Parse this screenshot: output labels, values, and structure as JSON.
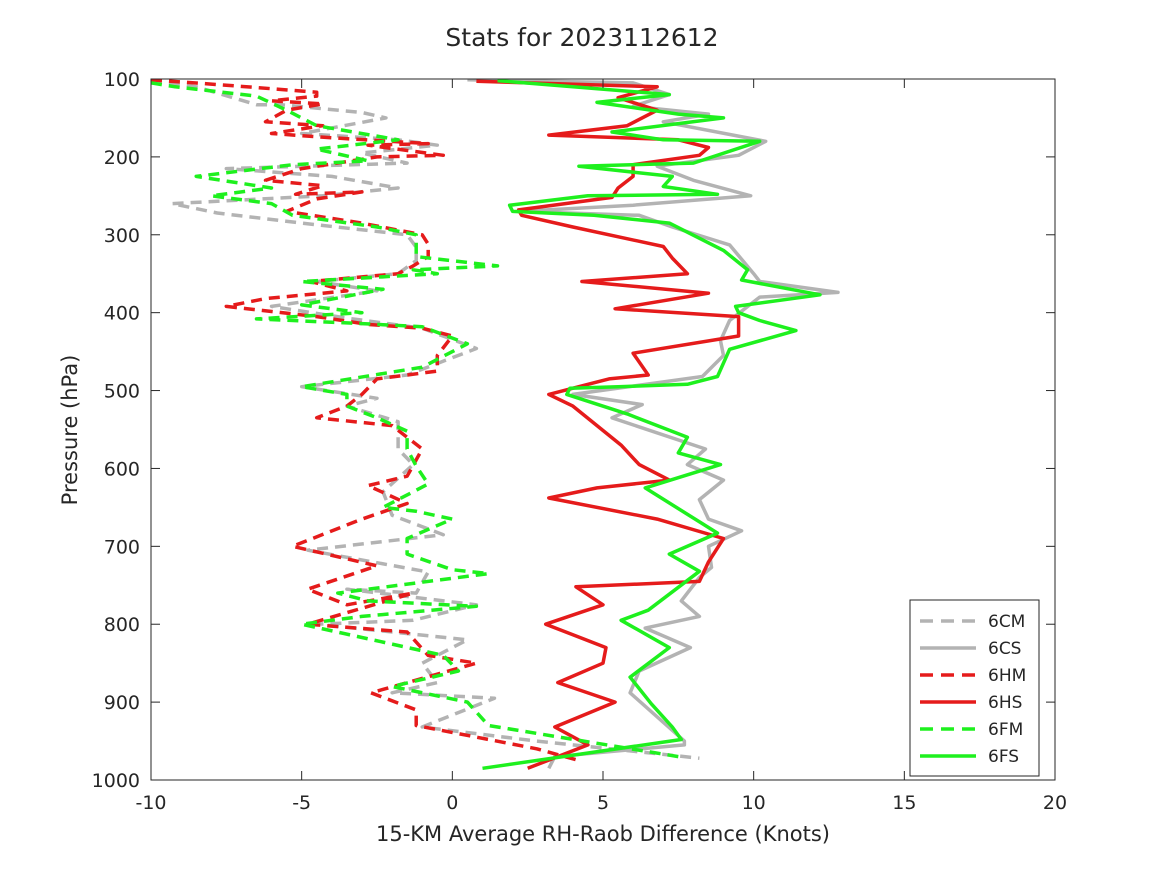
{
  "chart_data": {
    "type": "line",
    "title": "Stats for 2023112612",
    "xlabel": "15-KM Average RH-Raob Difference (Knots)",
    "ylabel": "Pressure (hPa)",
    "xlim": [
      -10,
      20
    ],
    "ylim": [
      1000,
      100
    ],
    "y_reversed": true,
    "xticks": [
      -10,
      -5,
      0,
      5,
      10,
      15,
      20
    ],
    "xtick_labels": [
      "-10",
      "-5",
      "0",
      "5",
      "10",
      "15",
      "20"
    ],
    "yticks": [
      100,
      200,
      300,
      400,
      500,
      600,
      700,
      800,
      900,
      1000
    ],
    "ytick_labels": [
      "100",
      "200",
      "300",
      "400",
      "500",
      "600",
      "700",
      "800",
      "900",
      "1000"
    ],
    "grid": false,
    "legend_position": "bottom-right",
    "series": [
      {
        "name": "6CM",
        "color": "#b3b3b3",
        "style": "dashed",
        "points": [
          [
            -10,
            103
          ],
          [
            -8.5,
            110
          ],
          [
            -6.5,
            133
          ],
          [
            -5.7,
            133
          ],
          [
            -3,
            143
          ],
          [
            -2.2,
            150
          ],
          [
            -5,
            170
          ],
          [
            -1.8,
            178
          ],
          [
            -0.5,
            185
          ],
          [
            -3,
            195
          ],
          [
            -1.5,
            208
          ],
          [
            -7.5,
            215
          ],
          [
            -4,
            225
          ],
          [
            -1.8,
            240
          ],
          [
            -4.3,
            250
          ],
          [
            -9.3,
            260
          ],
          [
            -7.8,
            272
          ],
          [
            -5,
            285
          ],
          [
            -1.5,
            300
          ],
          [
            -1.2,
            316
          ],
          [
            -1.2,
            333
          ],
          [
            -1.8,
            350
          ],
          [
            -4.5,
            360
          ],
          [
            -2.5,
            372
          ],
          [
            -6,
            392
          ],
          [
            -3.5,
            407
          ],
          [
            -1,
            420
          ],
          [
            0.8,
            446
          ],
          [
            -1.5,
            480
          ],
          [
            -5,
            495
          ],
          [
            -2.5,
            510
          ],
          [
            -3.5,
            520
          ],
          [
            -1.8,
            540
          ],
          [
            -1.8,
            575
          ],
          [
            -1.3,
            595
          ],
          [
            -2.3,
            630
          ],
          [
            -2,
            660
          ],
          [
            -0.3,
            685
          ],
          [
            -4.8,
            705
          ],
          [
            -0.8,
            733
          ],
          [
            -1.2,
            760
          ],
          [
            -3.5,
            755
          ],
          [
            0.8,
            775
          ],
          [
            -1.3,
            795
          ],
          [
            -4.5,
            800
          ],
          [
            0.5,
            820
          ],
          [
            -1,
            850
          ],
          [
            -0.5,
            875
          ],
          [
            -2,
            888
          ],
          [
            1.4,
            895
          ],
          [
            -1,
            932
          ],
          [
            2.8,
            950
          ],
          [
            8.2,
            972
          ]
        ]
      },
      {
        "name": "6CS",
        "color": "#b3b3b3",
        "style": "solid",
        "points": [
          [
            0.5,
            101
          ],
          [
            6,
            105
          ],
          [
            7.2,
            120
          ],
          [
            6,
            135
          ],
          [
            8.5,
            145
          ],
          [
            7,
            155
          ],
          [
            10.4,
            180
          ],
          [
            9.5,
            198
          ],
          [
            6.8,
            212
          ],
          [
            8,
            230
          ],
          [
            9.9,
            250
          ],
          [
            6,
            262
          ],
          [
            2.2,
            270
          ],
          [
            6.2,
            275
          ],
          [
            7.3,
            290
          ],
          [
            9.2,
            313
          ],
          [
            10,
            350
          ],
          [
            10.2,
            360
          ],
          [
            12.8,
            374
          ],
          [
            10.2,
            380
          ],
          [
            9.2,
            410
          ],
          [
            8.9,
            436
          ],
          [
            9,
            455
          ],
          [
            8.3,
            482
          ],
          [
            4,
            505
          ],
          [
            6.3,
            518
          ],
          [
            5.3,
            535
          ],
          [
            8.4,
            575
          ],
          [
            7.8,
            595
          ],
          [
            9,
            615
          ],
          [
            8.2,
            640
          ],
          [
            8.5,
            665
          ],
          [
            9.6,
            680
          ],
          [
            8.5,
            700
          ],
          [
            8.6,
            727
          ],
          [
            8.2,
            740
          ],
          [
            7.6,
            770
          ],
          [
            8.2,
            790
          ],
          [
            6.4,
            805
          ],
          [
            7.9,
            830
          ],
          [
            6.2,
            860
          ],
          [
            5.9,
            888
          ],
          [
            7.7,
            950
          ],
          [
            7.7,
            955
          ],
          [
            3.4,
            970
          ],
          [
            3.2,
            985
          ]
        ]
      },
      {
        "name": "6HM",
        "color": "#e51b1b",
        "style": "dashed",
        "points": [
          [
            -10,
            101
          ],
          [
            -7.5,
            108
          ],
          [
            -4.5,
            117
          ],
          [
            -4.5,
            122
          ],
          [
            -6,
            128
          ],
          [
            -4.3,
            132
          ],
          [
            -5.5,
            140
          ],
          [
            -6.2,
            155
          ],
          [
            -4.3,
            160
          ],
          [
            -6,
            170
          ],
          [
            -4.2,
            175
          ],
          [
            -0.8,
            183
          ],
          [
            -2.8,
            185
          ],
          [
            -0.3,
            198
          ],
          [
            -2.5,
            200
          ],
          [
            -5,
            215
          ],
          [
            -6.2,
            230
          ],
          [
            -4.3,
            237
          ],
          [
            -5.2,
            248
          ],
          [
            -3,
            245
          ],
          [
            -4.5,
            254
          ],
          [
            -5.5,
            270
          ],
          [
            -3,
            285
          ],
          [
            -1,
            300
          ],
          [
            -0.8,
            312
          ],
          [
            -0.8,
            328
          ],
          [
            -1.3,
            340
          ],
          [
            -1.8,
            350
          ],
          [
            -4.7,
            360
          ],
          [
            -3.5,
            372
          ],
          [
            -6.2,
            382
          ],
          [
            -7.5,
            392
          ],
          [
            -4.5,
            405
          ],
          [
            -2.8,
            415
          ],
          [
            -1,
            420
          ],
          [
            0,
            430
          ],
          [
            -0.5,
            455
          ],
          [
            -0.5,
            475
          ],
          [
            -2.5,
            485
          ],
          [
            -3,
            505
          ],
          [
            -3.5,
            520
          ],
          [
            -4.5,
            535
          ],
          [
            -2,
            545
          ],
          [
            -1,
            575
          ],
          [
            -1.5,
            610
          ],
          [
            -2.8,
            622
          ],
          [
            -1.5,
            645
          ],
          [
            -3,
            665
          ],
          [
            -5.3,
            700
          ],
          [
            -2.5,
            725
          ],
          [
            -4.8,
            755
          ],
          [
            -3.5,
            775
          ],
          [
            -1.3,
            760
          ],
          [
            -4.8,
            800
          ],
          [
            -1.5,
            810
          ],
          [
            -0.8,
            840
          ],
          [
            0.8,
            850
          ],
          [
            -2.7,
            888
          ],
          [
            -1.2,
            910
          ],
          [
            -1.2,
            930
          ],
          [
            2.8,
            960
          ],
          [
            4.2,
            975
          ]
        ]
      },
      {
        "name": "6HS",
        "color": "#e51b1b",
        "style": "solid",
        "points": [
          [
            0.8,
            103
          ],
          [
            6.8,
            110
          ],
          [
            5.5,
            124
          ],
          [
            6.8,
            140
          ],
          [
            5.8,
            160
          ],
          [
            3.2,
            172
          ],
          [
            7.5,
            178
          ],
          [
            8.5,
            188
          ],
          [
            8.2,
            198
          ],
          [
            6,
            210
          ],
          [
            6,
            225
          ],
          [
            5.5,
            240
          ],
          [
            5.3,
            252
          ],
          [
            2.2,
            268
          ],
          [
            2.3,
            275
          ],
          [
            4,
            290
          ],
          [
            7,
            315
          ],
          [
            7.3,
            330
          ],
          [
            7.8,
            350
          ],
          [
            4.3,
            360
          ],
          [
            8.5,
            375
          ],
          [
            5.4,
            395
          ],
          [
            9.5,
            405
          ],
          [
            9.5,
            430
          ],
          [
            6,
            452
          ],
          [
            6.5,
            480
          ],
          [
            5.2,
            485
          ],
          [
            3.2,
            505
          ],
          [
            4,
            520
          ],
          [
            5.6,
            570
          ],
          [
            6.2,
            595
          ],
          [
            7.2,
            615
          ],
          [
            4.8,
            625
          ],
          [
            3.2,
            638
          ],
          [
            6.8,
            665
          ],
          [
            9,
            690
          ],
          [
            8.5,
            720
          ],
          [
            8.2,
            745
          ],
          [
            4.1,
            752
          ],
          [
            5,
            775
          ],
          [
            3.1,
            800
          ],
          [
            5.1,
            830
          ],
          [
            5,
            850
          ],
          [
            3.5,
            875
          ],
          [
            5.4,
            900
          ],
          [
            3.4,
            932
          ],
          [
            4.5,
            955
          ],
          [
            2.5,
            985
          ]
        ]
      },
      {
        "name": "6FM",
        "color": "#1ef01e",
        "style": "dashed",
        "points": [
          [
            -10,
            105
          ],
          [
            -9.2,
            110
          ],
          [
            -6.5,
            122
          ],
          [
            -5.5,
            140
          ],
          [
            -4.5,
            160
          ],
          [
            -1.8,
            178
          ],
          [
            -4.5,
            190
          ],
          [
            -2.8,
            205
          ],
          [
            -5.3,
            210
          ],
          [
            -8.5,
            225
          ],
          [
            -6,
            240
          ],
          [
            -8,
            250
          ],
          [
            -6,
            260
          ],
          [
            -5.3,
            275
          ],
          [
            -2.5,
            290
          ],
          [
            -1.2,
            300
          ],
          [
            -1.2,
            328
          ],
          [
            1.5,
            340
          ],
          [
            -1.3,
            345
          ],
          [
            -0.5,
            350
          ],
          [
            -5,
            360
          ],
          [
            -2.3,
            370
          ],
          [
            -5,
            390
          ],
          [
            -3,
            400
          ],
          [
            -6.5,
            408
          ],
          [
            -3,
            414
          ],
          [
            -1,
            418
          ],
          [
            0.5,
            440
          ],
          [
            -1,
            470
          ],
          [
            -5,
            495
          ],
          [
            -3.5,
            505
          ],
          [
            -3.5,
            520
          ],
          [
            -2.5,
            535
          ],
          [
            -1.5,
            552
          ],
          [
            -1.5,
            575
          ],
          [
            -1.2,
            597
          ],
          [
            -0.8,
            620
          ],
          [
            -2.3,
            650
          ],
          [
            -1.2,
            655
          ],
          [
            0,
            665
          ],
          [
            -1.5,
            690
          ],
          [
            -1.5,
            710
          ],
          [
            0,
            730
          ],
          [
            1.2,
            735
          ],
          [
            -3.8,
            760
          ],
          [
            -2.8,
            770
          ],
          [
            0.8,
            777
          ],
          [
            -3,
            790
          ],
          [
            -5,
            800
          ],
          [
            -0.3,
            840
          ],
          [
            0.2,
            860
          ],
          [
            -2,
            880
          ],
          [
            0.5,
            900
          ],
          [
            1.2,
            930
          ],
          [
            7.5,
            970
          ]
        ]
      },
      {
        "name": "6FS",
        "color": "#1ef01e",
        "style": "solid",
        "points": [
          [
            1.5,
            102
          ],
          [
            7.2,
            120
          ],
          [
            4.8,
            130
          ],
          [
            7.5,
            145
          ],
          [
            9,
            150
          ],
          [
            5.3,
            168
          ],
          [
            7,
            178
          ],
          [
            10.2,
            180
          ],
          [
            8,
            208
          ],
          [
            4.2,
            212
          ],
          [
            7.3,
            225
          ],
          [
            7,
            238
          ],
          [
            8.8,
            248
          ],
          [
            4.5,
            250
          ],
          [
            1.9,
            262
          ],
          [
            2,
            270
          ],
          [
            4.7,
            275
          ],
          [
            7.2,
            285
          ],
          [
            9,
            320
          ],
          [
            9.8,
            345
          ],
          [
            9.6,
            358
          ],
          [
            12.2,
            377
          ],
          [
            9.4,
            392
          ],
          [
            9.5,
            400
          ],
          [
            10.2,
            410
          ],
          [
            11.4,
            423
          ],
          [
            9.2,
            447
          ],
          [
            8.8,
            482
          ],
          [
            7.8,
            492
          ],
          [
            5.5,
            495
          ],
          [
            3.9,
            497
          ],
          [
            3.8,
            505
          ],
          [
            5.8,
            530
          ],
          [
            7.8,
            560
          ],
          [
            7.5,
            580
          ],
          [
            8.9,
            595
          ],
          [
            6.4,
            625
          ],
          [
            8.8,
            683
          ],
          [
            7.2,
            710
          ],
          [
            8.2,
            732
          ],
          [
            6.5,
            782
          ],
          [
            5.6,
            795
          ],
          [
            7.2,
            830
          ],
          [
            5.9,
            868
          ],
          [
            6.6,
            902
          ],
          [
            7.3,
            932
          ],
          [
            7.6,
            948
          ],
          [
            1,
            985
          ]
        ]
      }
    ]
  }
}
